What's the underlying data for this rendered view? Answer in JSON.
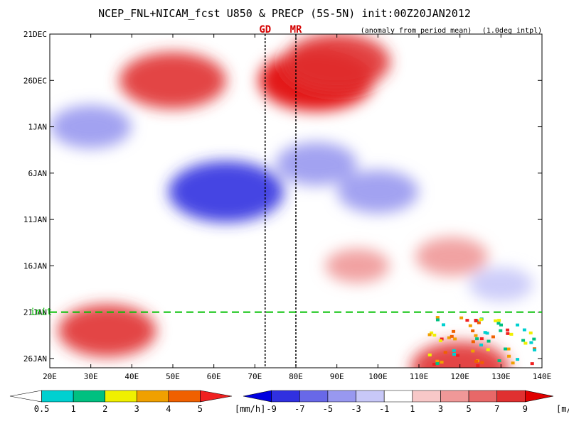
{
  "chart_data": {
    "type": "heatmap",
    "title": "NCEP_FNL+NICAM_fcst U850 & PRECP (5S-5N) init:00Z20JAN2012",
    "subtitle_left": "(anomaly from period mean)",
    "subtitle_right": "(1.0deg intpl)",
    "x_ticks": [
      "20E",
      "30E",
      "40E",
      "50E",
      "60E",
      "70E",
      "80E",
      "90E",
      "100E",
      "110E",
      "120E",
      "130E",
      "140E"
    ],
    "x_range": [
      20,
      140
    ],
    "y_ticks": [
      "21DEC",
      "26DEC",
      "1JAN",
      "6JAN",
      "11JAN",
      "16JAN",
      "21JAN",
      "26JAN"
    ],
    "y_range_days": [
      0,
      36
    ],
    "markers": [
      {
        "label": "GD",
        "lon": 72.5
      },
      {
        "label": "MR",
        "lon": 80
      }
    ],
    "init_label": "init",
    "init_day": 30,
    "u850_anomaly_blobs": [
      {
        "lon": 50,
        "day": 5,
        "value": 8
      },
      {
        "lon": 85,
        "day": 5,
        "value": 9
      },
      {
        "lon": 90,
        "day": 3,
        "value": 8
      },
      {
        "lon": 63,
        "day": 17,
        "value": -9
      },
      {
        "lon": 85,
        "day": 14,
        "value": -5
      },
      {
        "lon": 120,
        "day": 36,
        "value": 7
      },
      {
        "lon": 34,
        "day": 32,
        "value": 7
      },
      {
        "lon": 118,
        "day": 24,
        "value": 4
      },
      {
        "lon": 95,
        "day": 25,
        "value": 3
      },
      {
        "lon": 30,
        "day": 10,
        "value": -5
      },
      {
        "lon": 130,
        "day": 27,
        "value": -3
      },
      {
        "lon": 100,
        "day": 17,
        "value": -5
      }
    ],
    "precip_colorbar": {
      "levels": [
        "0.5",
        "1",
        "2",
        "3",
        "4",
        "5"
      ],
      "colors": [
        "#ffffff",
        "#00d0d0",
        "#00c080",
        "#f0f000",
        "#f0a000",
        "#f06000",
        "#f02020"
      ],
      "unit": "[mm/h]"
    },
    "u850_colorbar": {
      "levels": [
        "-9",
        "-7",
        "-5",
        "-3",
        "-1",
        "1",
        "3",
        "5",
        "7",
        "9"
      ],
      "colors": [
        "#0000e0",
        "#3030e0",
        "#6868e8",
        "#9898f0",
        "#c8c8f8",
        "#ffffff",
        "#f8c8c8",
        "#f09898",
        "#e86868",
        "#e03030",
        "#e00000"
      ],
      "unit": "[m/s]"
    }
  }
}
